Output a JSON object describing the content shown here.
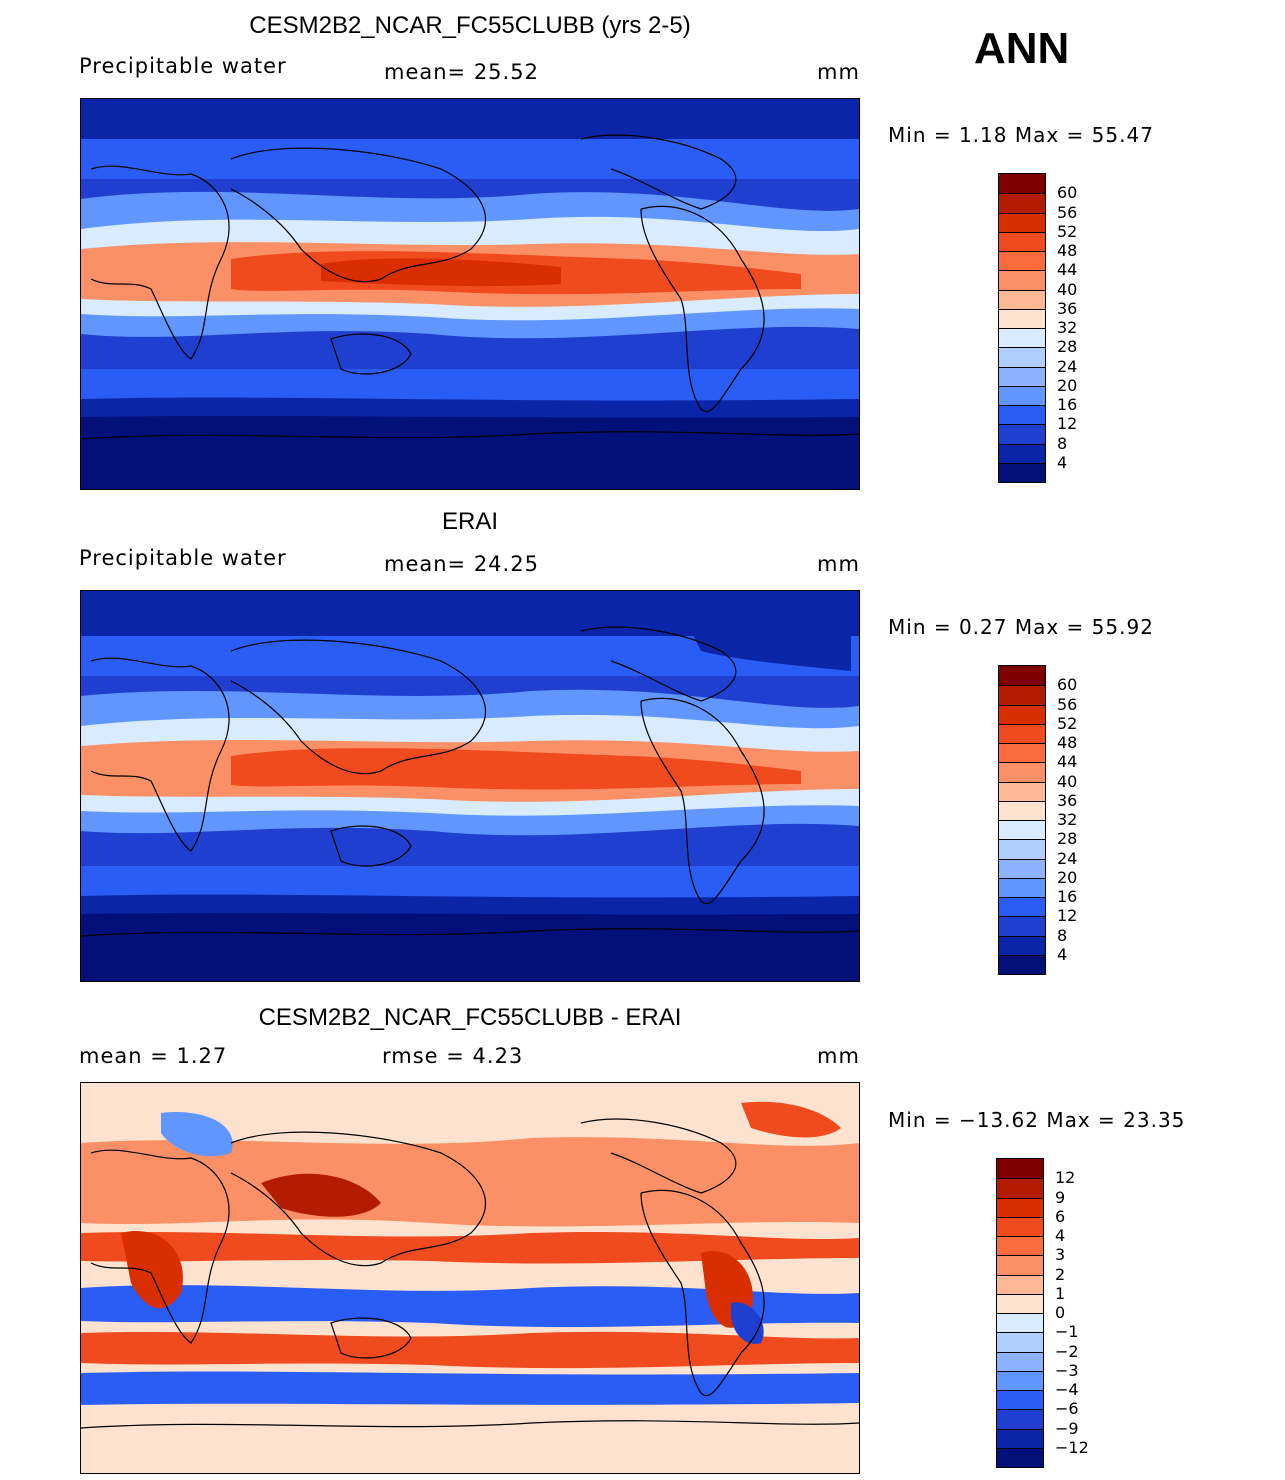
{
  "season": "ANN",
  "panels": [
    {
      "title": "CESM2B2_NCAR_FC55CLUBB (yrs 2-5)",
      "left_text": "Precipitable  water",
      "center_text": "mean=   25.52",
      "units": "mm",
      "minmax": "Min  =     1.18  Max  =    55.47",
      "colorbar_labels": [
        "60",
        "56",
        "52",
        "48",
        "44",
        "40",
        "36",
        "32",
        "28",
        "24",
        "20",
        "16",
        "12",
        "8",
        "4"
      ],
      "colorbar_colors": [
        "#7f0000",
        "#b31c00",
        "#d92e00",
        "#f04b1e",
        "#f76b3c",
        "#fb9066",
        "#fdb894",
        "#fde3cf",
        "#d9ecff",
        "#b0ceff",
        "#8db2ff",
        "#6196ff",
        "#2a5df5",
        "#1f3fd0",
        "#0b25a8",
        "#03107a"
      ]
    },
    {
      "title": "ERAI",
      "left_text": "Precipitable  water",
      "center_text": "mean=   24.25",
      "units": "mm",
      "minmax": "Min  =     0.27  Max  =    55.92",
      "colorbar_labels": [
        "60",
        "56",
        "52",
        "48",
        "44",
        "40",
        "36",
        "32",
        "28",
        "24",
        "20",
        "16",
        "12",
        "8",
        "4"
      ],
      "colorbar_colors": [
        "#7f0000",
        "#b31c00",
        "#d92e00",
        "#f04b1e",
        "#f76b3c",
        "#fb9066",
        "#fdb894",
        "#fde3cf",
        "#d9ecff",
        "#b0ceff",
        "#8db2ff",
        "#6196ff",
        "#2a5df5",
        "#1f3fd0",
        "#0b25a8",
        "#03107a"
      ]
    },
    {
      "title": "CESM2B2_NCAR_FC55CLUBB - ERAI",
      "left_text": "mean  =     1.27",
      "center_text": "rmse  =     4.23",
      "units": "mm",
      "minmax": "Min  = −13.62  Max  =    23.35",
      "colorbar_labels": [
        "12",
        "9",
        "6",
        "4",
        "3",
        "2",
        "1",
        "0",
        "−1",
        "−2",
        "−3",
        "−4",
        "−6",
        "−9",
        "−12"
      ],
      "colorbar_colors": [
        "#7f0000",
        "#b31c00",
        "#d92e00",
        "#f04b1e",
        "#f76b3c",
        "#fb9066",
        "#fdb894",
        "#fde3cf",
        "#d9ecff",
        "#b0ceff",
        "#8db2ff",
        "#6196ff",
        "#2a5df5",
        "#1f3fd0",
        "#0b25a8",
        "#03107a"
      ]
    }
  ]
}
